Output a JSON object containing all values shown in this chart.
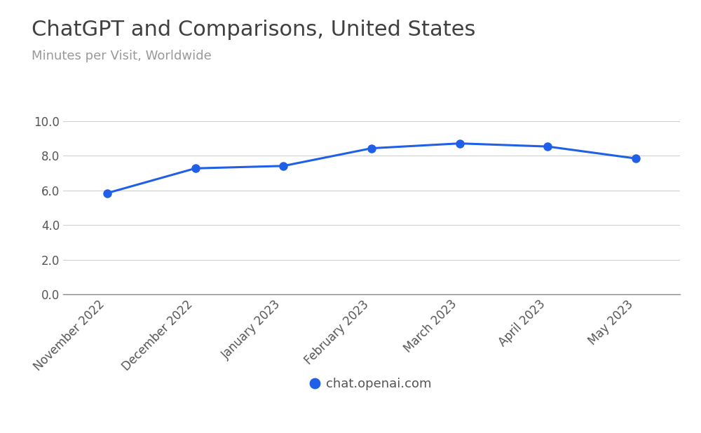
{
  "title": "ChatGPT and Comparisons, United States",
  "subtitle": "Minutes per Visit, Worldwide",
  "x_labels": [
    "November 2022",
    "December 2022",
    "January 2023",
    "February 2023",
    "March 2023",
    "April 2023",
    "May 2023"
  ],
  "y_values": [
    5.85,
    7.28,
    7.42,
    8.44,
    8.72,
    8.54,
    7.85
  ],
  "line_color": "#2060e8",
  "marker_color": "#2060e8",
  "ylim": [
    0.0,
    10.0
  ],
  "yticks": [
    0.0,
    2.0,
    4.0,
    6.0,
    8.0,
    10.0
  ],
  "legend_label": "chat.openai.com",
  "title_fontsize": 22,
  "subtitle_fontsize": 13,
  "axis_label_fontsize": 12,
  "legend_fontsize": 13,
  "title_color": "#404040",
  "subtitle_color": "#999999",
  "tick_color": "#555555",
  "grid_color": "#d0d0d0",
  "background_color": "#ffffff"
}
